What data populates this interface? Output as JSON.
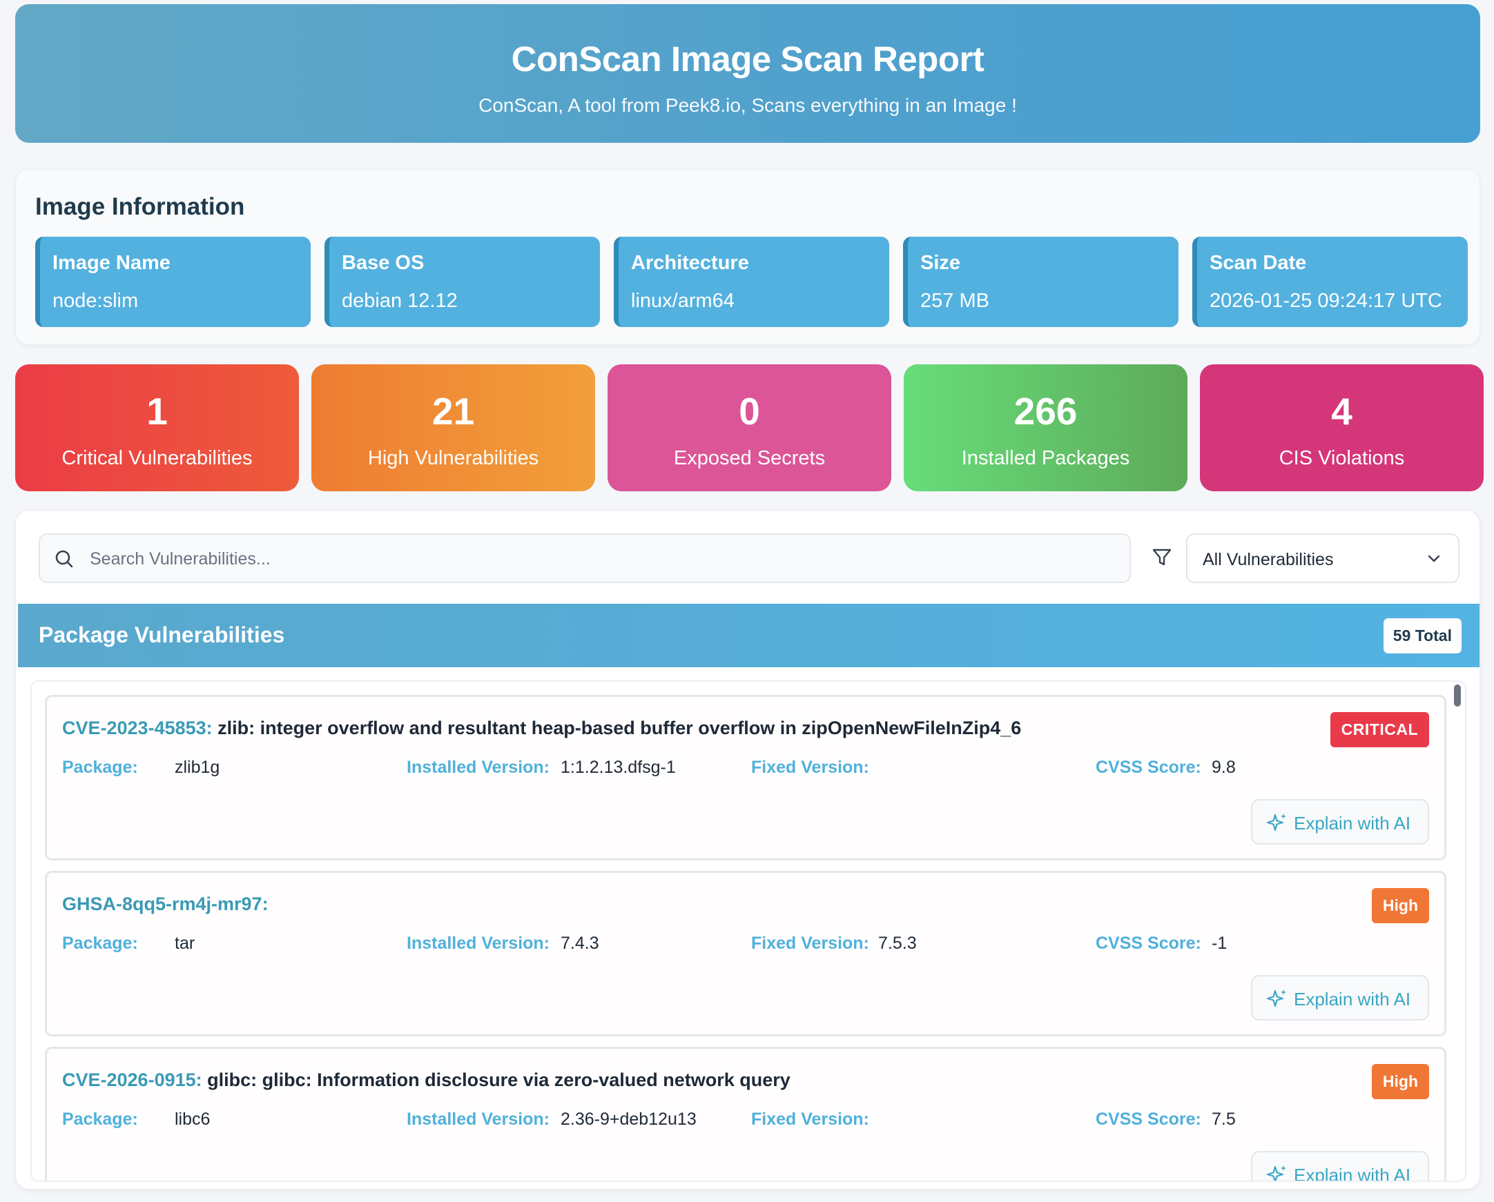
{
  "header": {
    "title": "ConScan Image Scan Report",
    "subtitle": "ConScan, A tool from Peek8.io, Scans everything in an Image !"
  },
  "image_info": {
    "heading": "Image Information",
    "tiles": [
      {
        "label": "Image Name",
        "value": "node:slim"
      },
      {
        "label": "Base OS",
        "value": "debian 12.12"
      },
      {
        "label": "Architecture",
        "value": "linux/arm64"
      },
      {
        "label": "Size",
        "value": "257 MB"
      },
      {
        "label": "Scan Date",
        "value": "2026-01-25 09:24:17 UTC"
      }
    ]
  },
  "stats": [
    {
      "value": "1",
      "label": "Critical Vulnerabilities",
      "color": "#eb3c46"
    },
    {
      "value": "21",
      "label": "High Vulnerabilities",
      "color": "#ee7c32"
    },
    {
      "value": "0",
      "label": "Exposed Secrets",
      "color": "#dc5597"
    },
    {
      "value": "266",
      "label": "Installed Packages",
      "color": "#67dd7a"
    },
    {
      "value": "4",
      "label": "CIS Violations",
      "color": "#d53679"
    }
  ],
  "search": {
    "placeholder": "Search Vulnerabilities...",
    "icon": "search-icon"
  },
  "filter": {
    "icon": "filter-icon",
    "selected": "All Vulnerabilities"
  },
  "section": {
    "title": "Package Vulnerabilities",
    "total_badge": "59 Total"
  },
  "field_labels": {
    "package": "Package:",
    "installed": "Installed Version:",
    "fixed": "Fixed Version:",
    "cvss": "CVSS Score:"
  },
  "ai_button_label": "Explain with AI",
  "vulnerabilities": [
    {
      "id": "CVE-2023-45853:",
      "description": "zlib: integer overflow and resultant heap-based buffer overflow in zipOpenNewFileInZip4_6",
      "severity": "CRITICAL",
      "package": "zlib1g",
      "installed_version": "1:1.2.13.dfsg-1",
      "fixed_version": "",
      "cvss": "9.8"
    },
    {
      "id": "GHSA-8qq5-rm4j-mr97:",
      "description": "",
      "severity": "High",
      "package": "tar",
      "installed_version": "7.4.3",
      "fixed_version": "7.5.3",
      "cvss": "-1"
    },
    {
      "id": "CVE-2026-0915:",
      "description": "glibc: glibc: Information disclosure via zero-valued network query",
      "severity": "High",
      "package": "libc6",
      "installed_version": "2.36-9+deb12u13",
      "fixed_version": "",
      "cvss": "7.5"
    }
  ]
}
